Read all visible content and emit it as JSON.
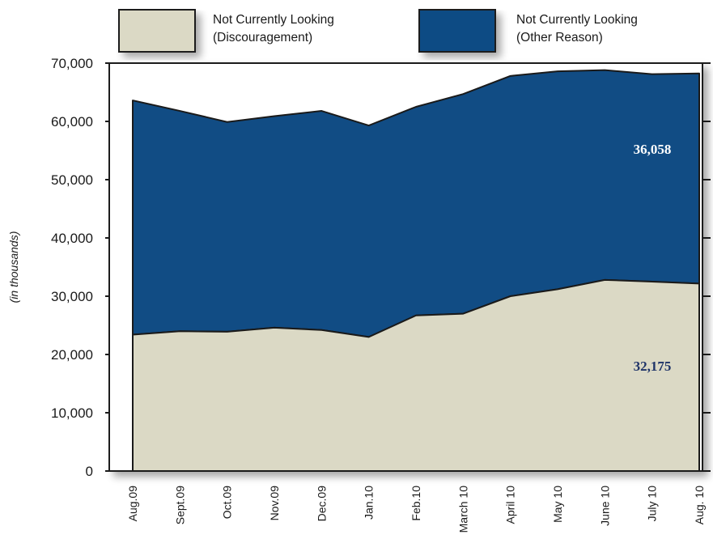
{
  "chart_data": {
    "type": "area",
    "stacked": true,
    "title": "",
    "xlabel": "",
    "ylabel": "(in thousands)",
    "ylim": [
      0,
      70000
    ],
    "yticks": [
      0,
      10000,
      20000,
      30000,
      40000,
      50000,
      60000,
      70000
    ],
    "ytick_labels": [
      "0",
      "10,000",
      "20,000",
      "30,000",
      "40,000",
      "50,000",
      "60,000",
      "70,000"
    ],
    "grid": false,
    "legend_position": "top",
    "categories": [
      "Aug.09",
      "Sept.09",
      "Oct.09",
      "Nov.09",
      "Dec.09",
      "Jan.10",
      "Feb.10",
      "March 10",
      "April 10",
      "May 10",
      "June 10",
      "July 10",
      "Aug. 10"
    ],
    "series": [
      {
        "name": "Not Currently Looking (Discouragement)",
        "legend_lines": [
          "Not Currently Looking",
          "(Discouragement)"
        ],
        "color": "#dbd9c5",
        "values": [
          23400,
          24000,
          23900,
          24600,
          24200,
          23000,
          26700,
          27000,
          30000,
          31200,
          32800,
          32500,
          32175
        ],
        "annotation": "32,175",
        "annotation_color": "#1f3468"
      },
      {
        "name": "Not Currently Looking (Other Reason)",
        "legend_lines": [
          "Not Currently Looking",
          "(Other Reason)"
        ],
        "color": "#114c84",
        "values": [
          40200,
          37800,
          36000,
          36300,
          37600,
          36300,
          35800,
          37700,
          37800,
          37400,
          36000,
          35600,
          36058
        ],
        "annotation": "36,058",
        "annotation_color": "#ffffff"
      }
    ]
  }
}
